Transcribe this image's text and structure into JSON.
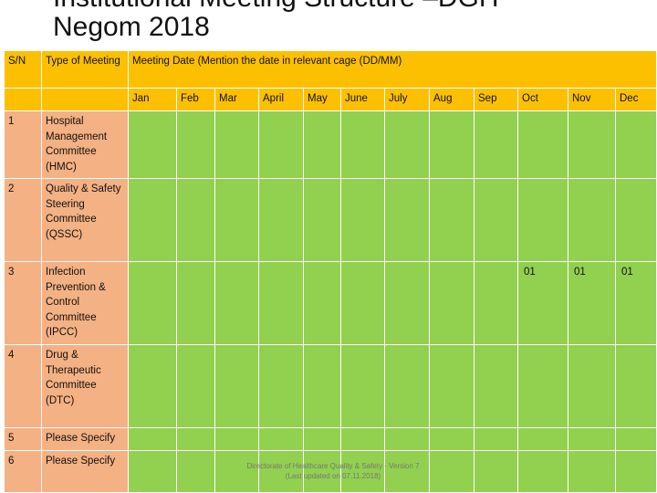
{
  "title": {
    "line1": "Institutional Meeting Structure –DGH",
    "line2": "Negom 2018"
  },
  "header": {
    "sn": "S/N",
    "type": "Type of Meeting",
    "date": "Meeting Date (Mention the date in relevant cage (DD/MM)"
  },
  "months": [
    "Jan",
    "Feb",
    "Mar",
    "April",
    "May",
    "June",
    "July",
    "Aug",
    "Sep",
    "Oct",
    "Nov",
    "Dec"
  ],
  "rows": [
    {
      "sn": "1",
      "type": "Hospital Management Committee (HMC)",
      "dates": [
        "",
        "",
        "",
        "",
        "",
        "",
        "",
        "",
        "",
        "",
        "",
        ""
      ]
    },
    {
      "sn": "2",
      "type": "Quality & Safety Steering Committee (QSSC)",
      "dates": [
        "",
        "",
        "",
        "",
        "",
        "",
        "",
        "",
        "",
        "",
        "",
        ""
      ]
    },
    {
      "sn": "3",
      "type": "Infection Prevention & Control Committee (IPCC)",
      "dates": [
        "",
        "",
        "",
        "",
        "",
        "",
        "",
        "",
        "",
        "01",
        "01",
        "01"
      ]
    },
    {
      "sn": "4",
      "type": "Drug & Therapeutic Committee (DTC)",
      "dates": [
        "",
        "",
        "",
        "",
        "",
        "",
        "",
        "",
        "",
        "",
        "",
        ""
      ]
    },
    {
      "sn": "5",
      "type": "Please Specify",
      "dates": [
        "",
        "",
        "",
        "",
        "",
        "",
        "",
        "",
        "",
        "",
        "",
        ""
      ]
    },
    {
      "sn": "6",
      "type": "Please Specify",
      "dates": [
        "",
        "",
        "",
        "",
        "",
        "",
        "",
        "",
        "",
        "",
        "",
        ""
      ]
    }
  ],
  "footer": {
    "line1": "Directorate of Healthcare Quality & Safety - Version 7",
    "line2": "(Last updated on 07.11.2018)"
  }
}
